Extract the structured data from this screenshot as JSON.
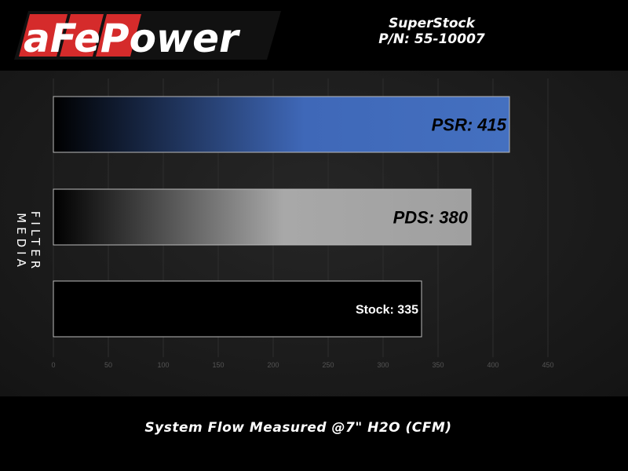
{
  "header": {
    "brand": "aFePower",
    "title": "SuperStock",
    "part_number": "P/N: 55-10007"
  },
  "chart_data": {
    "type": "bar",
    "orientation": "horizontal",
    "categories": [
      "PSR",
      "PDS",
      "Stock"
    ],
    "values": [
      415,
      380,
      335
    ],
    "data_labels": [
      "PSR: 415",
      "PDS: 380",
      "Stock: 335"
    ],
    "xlabel": "System Flow Measured @7\" H2O (CFM)",
    "ylabel": "FILTER MEDIA",
    "xlim": [
      0,
      450
    ],
    "xticks": [
      0,
      50,
      100,
      150,
      200,
      250,
      300,
      350,
      400,
      450
    ],
    "grid": true,
    "colors": {
      "PSR": "#3f68b8",
      "PDS": "#a8a8a8",
      "Stock": "#000000"
    }
  }
}
